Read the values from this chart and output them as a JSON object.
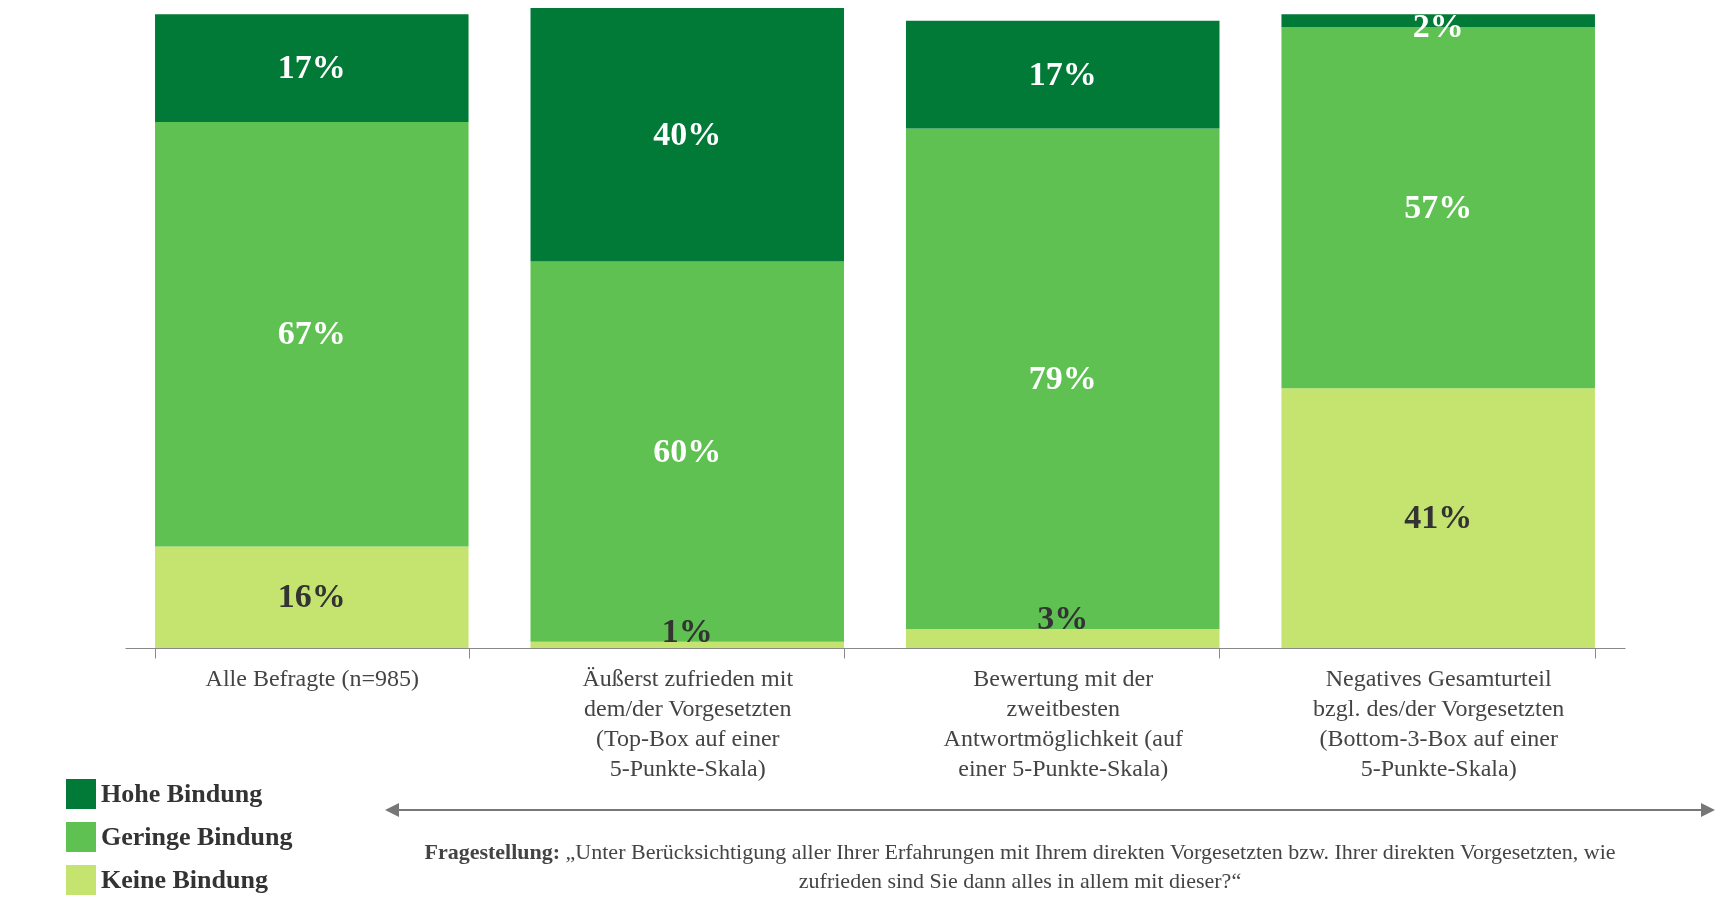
{
  "chart_data": {
    "type": "bar",
    "stacked": true,
    "legend": "bottom left",
    "categories": [
      "Alle Befragte (n=985)",
      "Äußerst zufrieden mit dem/der Vorgesetzten (Top-Box auf einer 5-Punkte-Skala)",
      "Bewertung mit der zweitbesten Antwortmöglichkeit (auf einer 5-Punkte-Skala)",
      "Negatives Gesamturteil bzgl. des/der Vorgesetzten (Bottom-3-Box auf einer 5-Punkte-Skala)"
    ],
    "series": [
      {
        "name": "Keine Bindung",
        "color": "#c5e46f",
        "values": [
          16,
          1,
          3,
          41
        ],
        "value_labels": [
          "16%",
          "1%",
          "3%",
          "41%"
        ]
      },
      {
        "name": "Geringe Bindung",
        "color": "#5fc152",
        "values": [
          67,
          60,
          79,
          57
        ],
        "value_labels": [
          "67%",
          "60%",
          "79%",
          "57%"
        ]
      },
      {
        "name": "Hohe Bindung",
        "color": "#007a36",
        "values": [
          17,
          40,
          17,
          2
        ],
        "value_labels": [
          "17%",
          "40%",
          "17%",
          "2%"
        ]
      }
    ],
    "annotations": [
      "Fragestellung: „Unter Berücksichtigung aller Ihrer Erfahrungen mit Ihrem direkten Vorgesetzten bzw. Ihrer direkten Vorgesetzten, wie zufrieden sind Sie dann alles in allem mit dieser?“"
    ]
  }
}
